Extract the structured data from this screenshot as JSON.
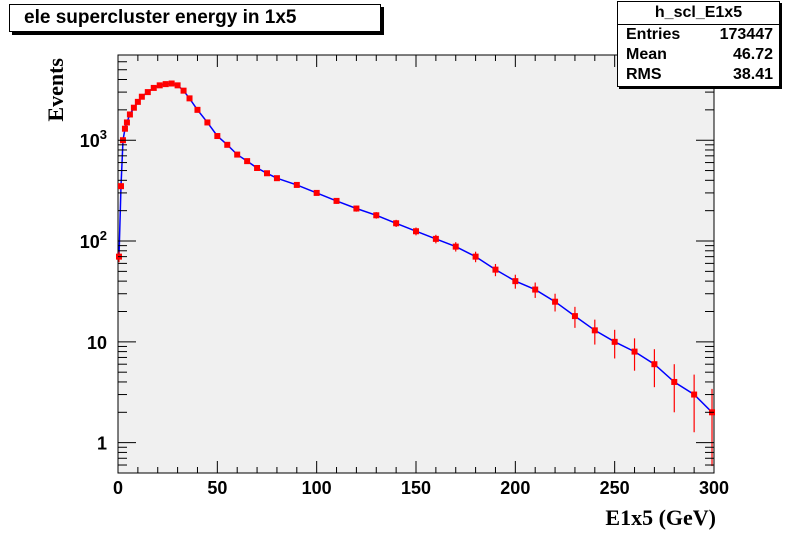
{
  "chart_data": {
    "type": "scatter",
    "title": "ele supercluster energy in 1x5",
    "xlabel": "E1x5 (GeV)",
    "ylabel": "Events",
    "xlim": [
      0,
      300
    ],
    "ylim": [
      0.5,
      7000
    ],
    "yscale": "log",
    "x_ticks": [
      "0",
      "50",
      "100",
      "150",
      "200",
      "250",
      "300"
    ],
    "y_ticks": [
      {
        "base": "1",
        "exp": ""
      },
      {
        "base": "10",
        "exp": ""
      },
      {
        "base": "10",
        "exp": "2"
      },
      {
        "base": "10",
        "exp": "3"
      }
    ],
    "grid": false,
    "colors": {
      "markers": "#ff0000",
      "line": "#0000ff",
      "frame_bg": "#f0f0f0"
    },
    "series": [
      {
        "x": [
          0.5,
          1.5,
          2.5,
          3.5,
          4.5,
          6,
          8,
          10,
          12,
          15,
          18,
          21,
          24,
          27,
          30,
          33,
          36,
          40,
          45,
          50,
          55,
          60,
          65,
          70,
          75,
          80,
          90,
          100,
          110,
          120,
          130,
          140,
          150,
          160,
          170,
          180,
          190,
          200,
          210,
          220,
          230,
          240,
          250,
          260,
          270,
          280,
          290,
          299
        ],
        "y": [
          70,
          350,
          1000,
          1300,
          1500,
          1800,
          2100,
          2400,
          2700,
          3000,
          3300,
          3500,
          3600,
          3650,
          3500,
          3100,
          2600,
          2000,
          1500,
          1100,
          900,
          720,
          620,
          530,
          470,
          420,
          360,
          300,
          250,
          210,
          180,
          150,
          125,
          105,
          88,
          70,
          52,
          40,
          33,
          25,
          18,
          13,
          10,
          8,
          6,
          4,
          3,
          2
        ]
      }
    ]
  },
  "stats": {
    "name": "h_scl_E1x5",
    "rows": [
      {
        "label": "Entries",
        "value": "173447"
      },
      {
        "label": "Mean",
        "value": "46.72"
      },
      {
        "label": "RMS",
        "value": "38.41"
      }
    ]
  }
}
